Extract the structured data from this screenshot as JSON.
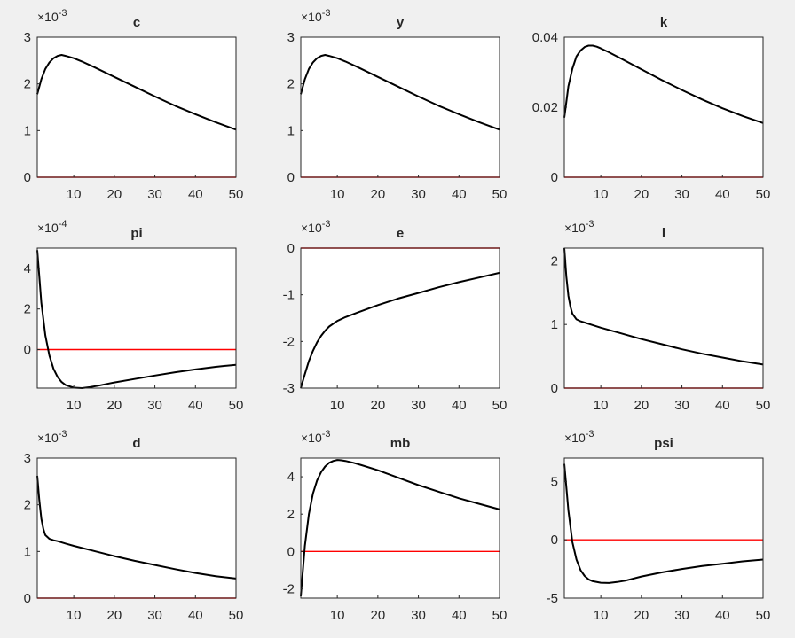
{
  "figure": {
    "background": "#f0f0f0",
    "axes_color": "#262626",
    "line_color": "#000000",
    "zero_line_color": "#ff0000"
  },
  "chart_data": [
    {
      "type": "line",
      "title": "c",
      "multiplier_text": "×10",
      "multiplier_exp": "-3",
      "xlim": [
        1,
        50
      ],
      "ylim": [
        0,
        3
      ],
      "xticks": [
        10,
        20,
        30,
        40,
        50
      ],
      "yticks": [
        0,
        1,
        2,
        3
      ],
      "xtick_labels": [
        "10",
        "20",
        "30",
        "40",
        "50"
      ],
      "ytick_labels": [
        "0",
        "1",
        "2",
        "3"
      ],
      "zero_line": 0,
      "series": [
        {
          "x": [
            1,
            2,
            3,
            4,
            5,
            6,
            7,
            8,
            10,
            12,
            15,
            20,
            25,
            30,
            35,
            40,
            45,
            50
          ],
          "y": [
            1.78,
            2.1,
            2.32,
            2.46,
            2.55,
            2.6,
            2.62,
            2.6,
            2.55,
            2.48,
            2.36,
            2.15,
            1.94,
            1.73,
            1.53,
            1.35,
            1.18,
            1.02
          ]
        }
      ]
    },
    {
      "type": "line",
      "title": "y",
      "multiplier_text": "×10",
      "multiplier_exp": "-3",
      "xlim": [
        1,
        50
      ],
      "ylim": [
        0,
        3
      ],
      "xticks": [
        10,
        20,
        30,
        40,
        50
      ],
      "yticks": [
        0,
        1,
        2,
        3
      ],
      "xtick_labels": [
        "10",
        "20",
        "30",
        "40",
        "50"
      ],
      "ytick_labels": [
        "0",
        "1",
        "2",
        "3"
      ],
      "zero_line": 0,
      "series": [
        {
          "x": [
            1,
            2,
            3,
            4,
            5,
            6,
            7,
            8,
            10,
            12,
            15,
            20,
            25,
            30,
            35,
            40,
            45,
            50
          ],
          "y": [
            1.78,
            2.1,
            2.32,
            2.46,
            2.55,
            2.6,
            2.62,
            2.6,
            2.55,
            2.48,
            2.36,
            2.15,
            1.94,
            1.73,
            1.53,
            1.35,
            1.18,
            1.02
          ]
        }
      ]
    },
    {
      "type": "line",
      "title": "k",
      "multiplier_text": "",
      "multiplier_exp": "",
      "xlim": [
        1,
        50
      ],
      "ylim": [
        0,
        0.04
      ],
      "xticks": [
        10,
        20,
        30,
        40,
        50
      ],
      "yticks": [
        0,
        0.02,
        0.04
      ],
      "xtick_labels": [
        "10",
        "20",
        "30",
        "40",
        "50"
      ],
      "ytick_labels": [
        "0",
        "0.02",
        "0.04"
      ],
      "zero_line": 0,
      "series": [
        {
          "x": [
            1,
            2,
            3,
            4,
            5,
            6,
            7,
            8,
            9,
            10,
            12,
            15,
            20,
            25,
            30,
            35,
            40,
            45,
            50
          ],
          "y": [
            0.017,
            0.026,
            0.031,
            0.0345,
            0.0362,
            0.0372,
            0.0376,
            0.0376,
            0.0373,
            0.0368,
            0.0357,
            0.0339,
            0.0308,
            0.0278,
            0.0249,
            0.0222,
            0.0197,
            0.0175,
            0.0155
          ]
        }
      ]
    },
    {
      "type": "line",
      "title": "pi",
      "multiplier_text": "×10",
      "multiplier_exp": "-4",
      "xlim": [
        1,
        50
      ],
      "ylim": [
        -1.9,
        5
      ],
      "xticks": [
        10,
        20,
        30,
        40,
        50
      ],
      "yticks": [
        0,
        2,
        4
      ],
      "xtick_labels": [
        "10",
        "20",
        "30",
        "40",
        "50"
      ],
      "ytick_labels": [
        "0",
        "2",
        "4"
      ],
      "zero_line": 0,
      "series": [
        {
          "x": [
            1,
            2,
            3,
            4,
            5,
            6,
            7,
            8,
            10,
            12,
            14,
            16,
            20,
            25,
            30,
            35,
            40,
            45,
            50
          ],
          "y": [
            4.9,
            2.3,
            0.7,
            -0.3,
            -0.95,
            -1.35,
            -1.6,
            -1.75,
            -1.88,
            -1.9,
            -1.85,
            -1.78,
            -1.62,
            -1.45,
            -1.28,
            -1.12,
            -0.98,
            -0.85,
            -0.75
          ]
        }
      ]
    },
    {
      "type": "line",
      "title": "e",
      "multiplier_text": "×10",
      "multiplier_exp": "-3",
      "xlim": [
        1,
        50
      ],
      "ylim": [
        -3,
        0
      ],
      "xticks": [
        10,
        20,
        30,
        40,
        50
      ],
      "yticks": [
        -3,
        -2,
        -1,
        0
      ],
      "xtick_labels": [
        "10",
        "20",
        "30",
        "40",
        "50"
      ],
      "ytick_labels": [
        "-3",
        "-2",
        "-1",
        "0"
      ],
      "zero_line": 0,
      "series": [
        {
          "x": [
            1,
            2,
            3,
            4,
            5,
            6,
            7,
            8,
            10,
            12,
            15,
            20,
            25,
            30,
            35,
            40,
            45,
            50
          ],
          "y": [
            -3.0,
            -2.7,
            -2.42,
            -2.2,
            -2.02,
            -1.88,
            -1.77,
            -1.68,
            -1.56,
            -1.48,
            -1.38,
            -1.22,
            -1.08,
            -0.96,
            -0.84,
            -0.73,
            -0.63,
            -0.53
          ]
        }
      ]
    },
    {
      "type": "line",
      "title": "l",
      "multiplier_text": "×10",
      "multiplier_exp": "-3",
      "xlim": [
        1,
        50
      ],
      "ylim": [
        0,
        2.2
      ],
      "xticks": [
        10,
        20,
        30,
        40,
        50
      ],
      "yticks": [
        0,
        1,
        2
      ],
      "xtick_labels": [
        "10",
        "20",
        "30",
        "40",
        "50"
      ],
      "ytick_labels": [
        "0",
        "1",
        "2"
      ],
      "zero_line": 0,
      "series": [
        {
          "x": [
            1,
            1.5,
            2,
            2.5,
            3,
            4,
            5,
            6,
            8,
            10,
            15,
            20,
            25,
            30,
            35,
            40,
            45,
            50
          ],
          "y": [
            2.2,
            1.75,
            1.45,
            1.28,
            1.17,
            1.08,
            1.05,
            1.03,
            0.99,
            0.95,
            0.86,
            0.77,
            0.69,
            0.61,
            0.54,
            0.48,
            0.42,
            0.37
          ]
        }
      ]
    },
    {
      "type": "line",
      "title": "d",
      "multiplier_text": "×10",
      "multiplier_exp": "-3",
      "xlim": [
        1,
        50
      ],
      "ylim": [
        0,
        3
      ],
      "xticks": [
        10,
        20,
        30,
        40,
        50
      ],
      "yticks": [
        0,
        1,
        2,
        3
      ],
      "xtick_labels": [
        "10",
        "20",
        "30",
        "40",
        "50"
      ],
      "ytick_labels": [
        "0",
        "1",
        "2",
        "3"
      ],
      "zero_line": 0,
      "series": [
        {
          "x": [
            1,
            1.5,
            2,
            2.5,
            3,
            4,
            5,
            6,
            8,
            10,
            15,
            20,
            25,
            30,
            35,
            40,
            45,
            50
          ],
          "y": [
            2.62,
            2.1,
            1.7,
            1.48,
            1.35,
            1.27,
            1.24,
            1.22,
            1.17,
            1.12,
            1.01,
            0.9,
            0.8,
            0.71,
            0.62,
            0.54,
            0.47,
            0.42
          ]
        }
      ]
    },
    {
      "type": "line",
      "title": "mb",
      "multiplier_text": "×10",
      "multiplier_exp": "-3",
      "xlim": [
        1,
        50
      ],
      "ylim": [
        -2.5,
        5
      ],
      "xticks": [
        10,
        20,
        30,
        40,
        50
      ],
      "yticks": [
        -2,
        0,
        2,
        4
      ],
      "xtick_labels": [
        "10",
        "20",
        "30",
        "40",
        "50"
      ],
      "ytick_labels": [
        "-2",
        "0",
        "2",
        "4"
      ],
      "zero_line": 0,
      "series": [
        {
          "x": [
            1,
            2,
            3,
            4,
            5,
            6,
            7,
            8,
            9,
            10,
            11,
            12,
            14,
            16,
            20,
            25,
            30,
            35,
            40,
            45,
            50
          ],
          "y": [
            -2.4,
            0.3,
            2.0,
            3.1,
            3.8,
            4.25,
            4.55,
            4.75,
            4.85,
            4.9,
            4.88,
            4.85,
            4.75,
            4.62,
            4.35,
            3.95,
            3.55,
            3.2,
            2.85,
            2.55,
            2.25
          ]
        }
      ]
    },
    {
      "type": "line",
      "title": "psi",
      "multiplier_text": "×10",
      "multiplier_exp": "-3",
      "xlim": [
        1,
        50
      ],
      "ylim": [
        -5,
        7
      ],
      "xticks": [
        10,
        20,
        30,
        40,
        50
      ],
      "yticks": [
        -5,
        0,
        5
      ],
      "xtick_labels": [
        "10",
        "20",
        "30",
        "40",
        "50"
      ],
      "ytick_labels": [
        "-5",
        "0",
        "5"
      ],
      "zero_line": 0,
      "series": [
        {
          "x": [
            1,
            2,
            3,
            4,
            5,
            6,
            7,
            8,
            10,
            12,
            14,
            16,
            20,
            25,
            30,
            35,
            40,
            45,
            50
          ],
          "y": [
            6.5,
            2.5,
            -0.2,
            -1.7,
            -2.6,
            -3.1,
            -3.4,
            -3.55,
            -3.68,
            -3.7,
            -3.62,
            -3.5,
            -3.15,
            -2.8,
            -2.5,
            -2.25,
            -2.05,
            -1.85,
            -1.7
          ]
        }
      ]
    }
  ]
}
